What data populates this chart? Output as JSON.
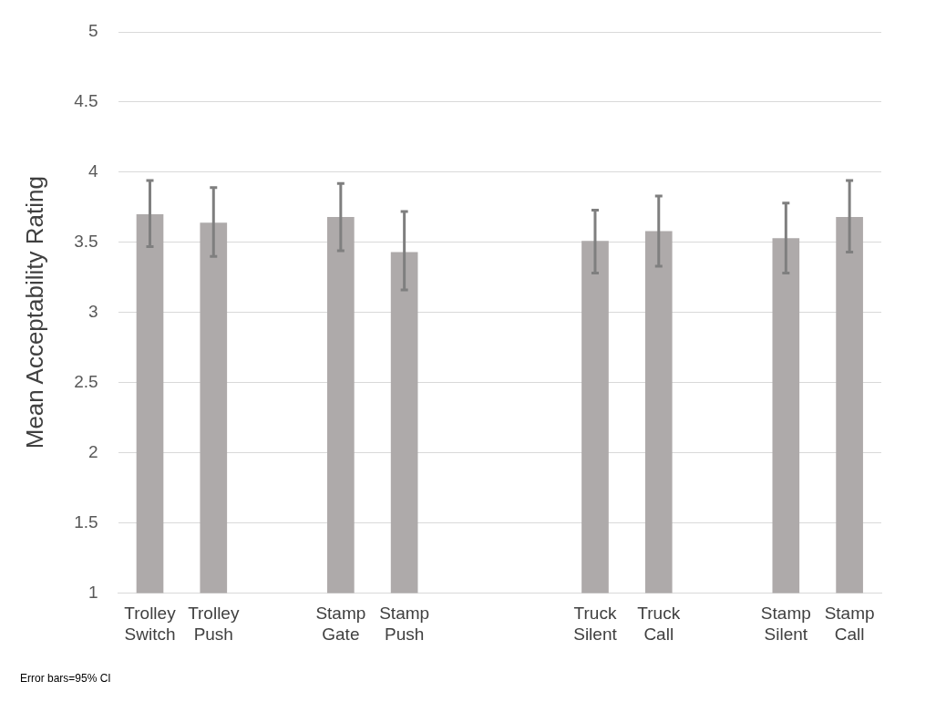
{
  "chart_data": {
    "type": "bar",
    "ylabel": "Mean Acceptability Rating",
    "categories": [
      "Trolley Switch",
      "Trolley Push",
      null,
      "Stamp Gate",
      "Stamp Push",
      null,
      null,
      "Truck Silent",
      "Truck Call",
      null,
      "Stamp Silent",
      "Stamp Call"
    ],
    "values": [
      3.7,
      3.64,
      null,
      3.68,
      3.43,
      null,
      null,
      3.51,
      3.58,
      null,
      3.53,
      3.68
    ],
    "errors": [
      [
        3.47,
        3.94
      ],
      [
        3.4,
        3.89
      ],
      null,
      [
        3.44,
        3.92
      ],
      [
        3.16,
        3.72
      ],
      null,
      null,
      [
        3.28,
        3.73
      ],
      [
        3.33,
        3.83
      ],
      null,
      [
        3.28,
        3.78
      ],
      [
        3.43,
        3.94
      ]
    ],
    "color": "#aeaaaa",
    "ylim": [
      1,
      5
    ],
    "yticks": [
      1,
      1.5,
      2,
      2.5,
      3,
      3.5,
      4,
      4.5,
      5
    ],
    "grid": "y",
    "legend": false,
    "annotations": [
      "Error bars=95% CI"
    ]
  }
}
